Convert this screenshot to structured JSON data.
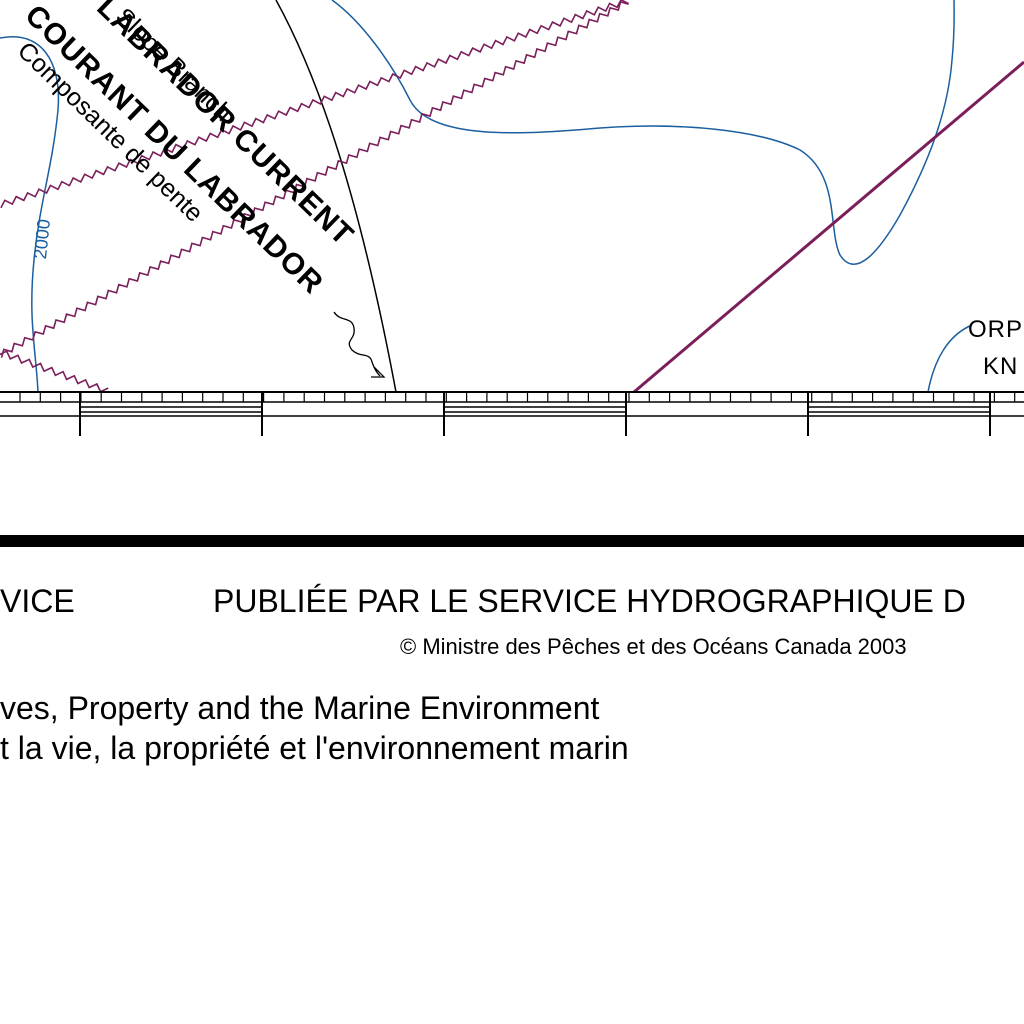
{
  "map": {
    "current_name_en": "LABRADOR CURRENT",
    "branch_en": "Slope Branch",
    "current_name_fr": "COURANT DU LABRADOR",
    "branch_fr": "Composante de pente",
    "depth_contour_label": "2000",
    "feature_label_line1": "ORP",
    "feature_label_line2": "KN"
  },
  "colors": {
    "contour": "#1a5fa0",
    "boundary": "#7b1f5a",
    "ink": "#000000"
  },
  "footer": {
    "publisher_left": "VICE",
    "publisher_right": "PUBLIÉE PAR LE SERVICE HYDROGRAPHIQUE D",
    "copyright": "© Ministre des Pêches et des Océans Canada 2003",
    "motto_en": "ves, Property and the Marine Environment",
    "motto_fr": "t la vie, la propriété et l'environnement marin"
  }
}
